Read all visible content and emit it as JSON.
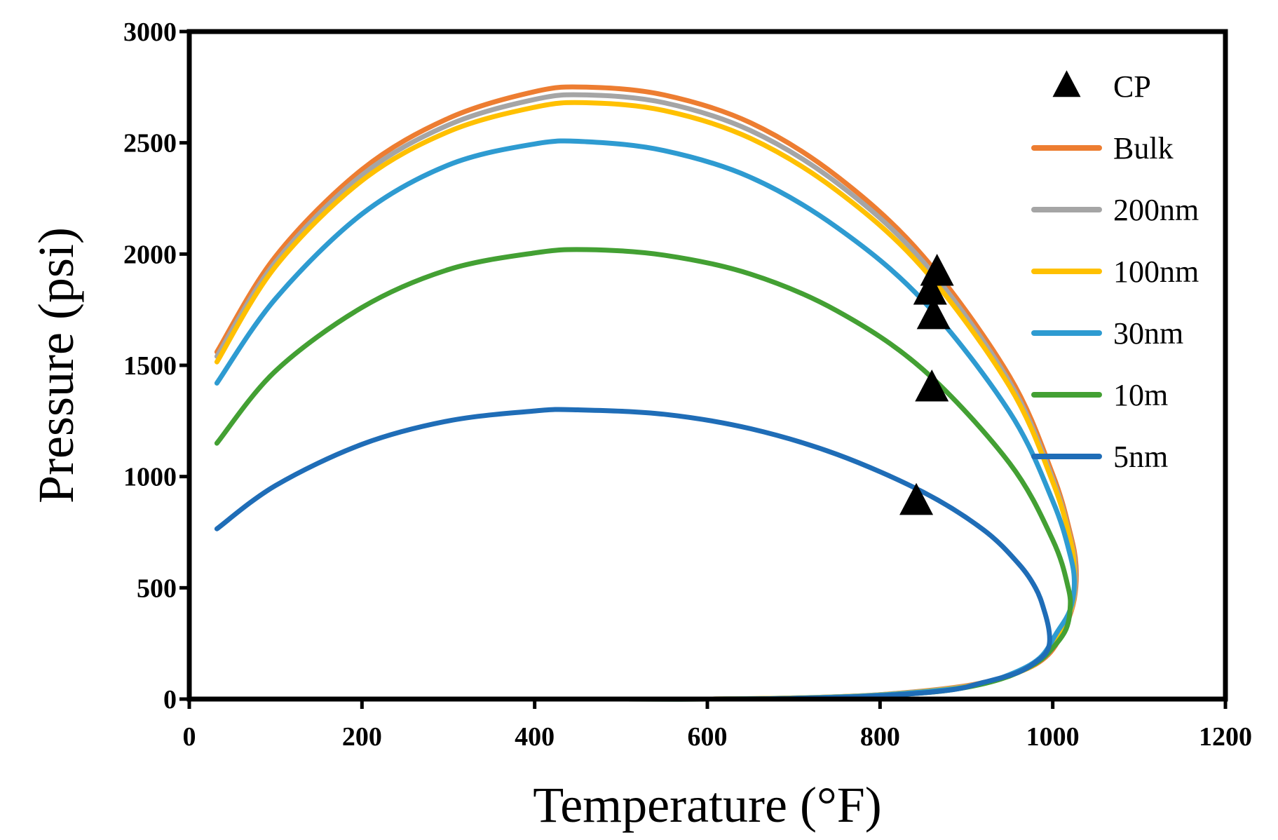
{
  "chart_data": {
    "type": "line",
    "title": "",
    "xlabel": "Temperature (°F)",
    "ylabel": "Pressure (psi)",
    "xlim": [
      0,
      1200
    ],
    "ylim": [
      0,
      3000
    ],
    "x_ticks": [
      0,
      200,
      400,
      600,
      800,
      1000,
      1200
    ],
    "y_ticks": [
      0,
      500,
      1000,
      1500,
      2000,
      2500,
      3000
    ],
    "grid": false,
    "legend_position": "right-inside",
    "legend": [
      "CP",
      "Bulk",
      "200nm",
      "100nm",
      "30nm",
      "10m",
      "5nm"
    ],
    "series": [
      {
        "name": "Bulk",
        "color": "#ED7D31",
        "points": [
          [
            32,
            1560
          ],
          [
            100,
            1990
          ],
          [
            200,
            2380
          ],
          [
            300,
            2610
          ],
          [
            400,
            2730
          ],
          [
            460,
            2750
          ],
          [
            550,
            2715
          ],
          [
            650,
            2590
          ],
          [
            750,
            2350
          ],
          [
            850,
            1990
          ],
          [
            950,
            1450
          ],
          [
            1000,
            1010
          ],
          [
            1020,
            750
          ],
          [
            1027,
            600
          ],
          [
            1025,
            450
          ],
          [
            1015,
            330
          ],
          [
            995,
            200
          ],
          [
            960,
            120
          ],
          [
            900,
            60
          ],
          [
            800,
            20
          ],
          [
            700,
            5
          ],
          [
            600,
            0
          ],
          [
            500,
            0
          ],
          [
            355,
            0
          ]
        ]
      },
      {
        "name": "200nm",
        "color": "#A5A5A5",
        "points": [
          [
            32,
            1540
          ],
          [
            100,
            1965
          ],
          [
            200,
            2355
          ],
          [
            300,
            2580
          ],
          [
            400,
            2695
          ],
          [
            460,
            2715
          ],
          [
            550,
            2680
          ],
          [
            650,
            2555
          ],
          [
            750,
            2320
          ],
          [
            850,
            1965
          ],
          [
            950,
            1425
          ],
          [
            1000,
            990
          ],
          [
            1020,
            730
          ],
          [
            1026,
            590
          ],
          [
            1024,
            440
          ],
          [
            1012,
            320
          ],
          [
            992,
            195
          ],
          [
            955,
            115
          ],
          [
            900,
            58
          ],
          [
            800,
            20
          ],
          [
            700,
            5
          ],
          [
            600,
            0
          ],
          [
            500,
            0
          ],
          [
            355,
            0
          ]
        ]
      },
      {
        "name": "100nm",
        "color": "#FFC000",
        "points": [
          [
            32,
            1515
          ],
          [
            100,
            1945
          ],
          [
            200,
            2330
          ],
          [
            300,
            2550
          ],
          [
            400,
            2660
          ],
          [
            460,
            2680
          ],
          [
            550,
            2645
          ],
          [
            650,
            2520
          ],
          [
            750,
            2285
          ],
          [
            850,
            1935
          ],
          [
            950,
            1405
          ],
          [
            1000,
            975
          ],
          [
            1020,
            720
          ],
          [
            1025,
            580
          ],
          [
            1023,
            430
          ],
          [
            1010,
            315
          ],
          [
            990,
            190
          ],
          [
            955,
            112
          ],
          [
            900,
            56
          ],
          [
            800,
            19
          ],
          [
            700,
            5
          ],
          [
            600,
            0
          ],
          [
            500,
            0
          ],
          [
            355,
            0
          ]
        ]
      },
      {
        "name": "30nm",
        "color": "#2E9BD1",
        "points": [
          [
            32,
            1420
          ],
          [
            100,
            1800
          ],
          [
            200,
            2180
          ],
          [
            300,
            2400
          ],
          [
            400,
            2495
          ],
          [
            460,
            2505
          ],
          [
            550,
            2465
          ],
          [
            650,
            2345
          ],
          [
            750,
            2120
          ],
          [
            850,
            1790
          ],
          [
            950,
            1290
          ],
          [
            1000,
            890
          ],
          [
            1020,
            650
          ],
          [
            1025,
            520
          ],
          [
            1020,
            400
          ],
          [
            1005,
            300
          ],
          [
            985,
            185
          ],
          [
            950,
            110
          ],
          [
            900,
            54
          ],
          [
            800,
            18
          ],
          [
            700,
            4
          ],
          [
            600,
            0
          ],
          [
            500,
            0
          ],
          [
            355,
            0
          ]
        ]
      },
      {
        "name": "10m",
        "color": "#43A033",
        "points": [
          [
            32,
            1150
          ],
          [
            100,
            1475
          ],
          [
            200,
            1760
          ],
          [
            300,
            1930
          ],
          [
            400,
            2005
          ],
          [
            460,
            2020
          ],
          [
            550,
            1995
          ],
          [
            650,
            1910
          ],
          [
            750,
            1745
          ],
          [
            850,
            1480
          ],
          [
            950,
            1060
          ],
          [
            1000,
            715
          ],
          [
            1018,
            500
          ],
          [
            1020,
            400
          ],
          [
            1015,
            310
          ],
          [
            1000,
            230
          ],
          [
            980,
            160
          ],
          [
            940,
            90
          ],
          [
            880,
            40
          ],
          [
            800,
            15
          ],
          [
            700,
            3
          ],
          [
            600,
            0
          ],
          [
            500,
            0
          ],
          [
            355,
            0
          ]
        ]
      },
      {
        "name": "5nm",
        "color": "#1F6DB7",
        "points": [
          [
            32,
            765
          ],
          [
            100,
            960
          ],
          [
            200,
            1145
          ],
          [
            300,
            1250
          ],
          [
            400,
            1295
          ],
          [
            450,
            1300
          ],
          [
            550,
            1280
          ],
          [
            650,
            1215
          ],
          [
            750,
            1100
          ],
          [
            850,
            930
          ],
          [
            920,
            760
          ],
          [
            960,
            610
          ],
          [
            980,
            500
          ],
          [
            990,
            400
          ],
          [
            996,
            300
          ],
          [
            995,
            230
          ],
          [
            985,
            180
          ],
          [
            960,
            120
          ],
          [
            920,
            75
          ],
          [
            880,
            40
          ],
          [
            800,
            15
          ],
          [
            700,
            3
          ],
          [
            600,
            0
          ],
          [
            500,
            0
          ],
          [
            355,
            0
          ]
        ]
      }
    ],
    "critical_points": {
      "name": "CP",
      "color": "#000000",
      "points": [
        [
          866,
          1915
        ],
        [
          858,
          1830
        ],
        [
          862,
          1720
        ],
        [
          860,
          1395
        ],
        [
          842,
          885
        ]
      ]
    }
  }
}
